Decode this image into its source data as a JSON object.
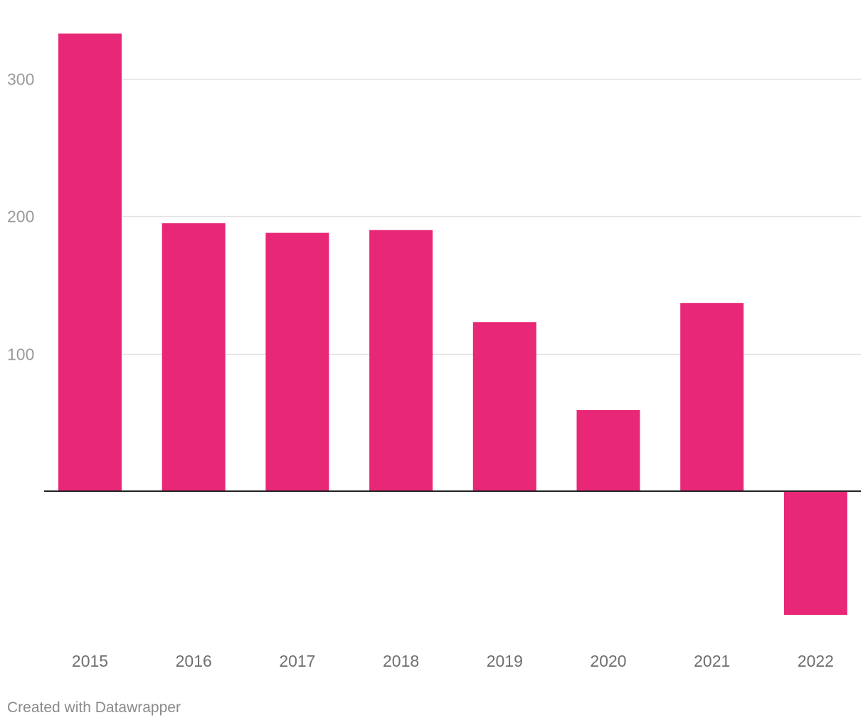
{
  "chart_data": {
    "type": "bar",
    "categories": [
      "2015",
      "2016",
      "2017",
      "2018",
      "2019",
      "2020",
      "2021",
      "2022"
    ],
    "values": [
      333,
      195,
      188,
      190,
      123,
      59,
      137,
      -90
    ],
    "yticks": [
      100,
      200,
      300
    ],
    "ylim": [
      -90,
      333
    ],
    "grid": true,
    "baseline": 0,
    "colors": {
      "bar": "#e82876",
      "grid": "#e2e2e2",
      "baseline": "#222222"
    }
  },
  "footer": {
    "credit": "Created with Datawrapper"
  }
}
